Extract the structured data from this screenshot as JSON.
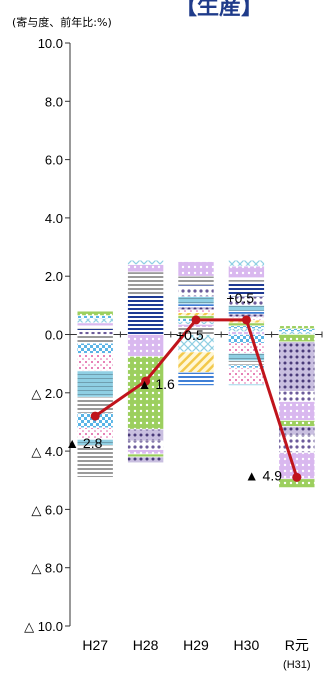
{
  "chart_data": {
    "type": "bar",
    "title": "【生産】",
    "ylabel": "(寄与度、前年比:%)",
    "ylim": [
      -10,
      10
    ],
    "yticks": [
      "10.0",
      "8.0",
      "6.0",
      "4.0",
      "2.0",
      "0.0",
      "△ 2.0",
      "△ 4.0",
      "△ 6.0",
      "△ 8.0",
      "△ 10.0"
    ],
    "ytick_values": [
      10,
      8,
      6,
      4,
      2,
      0,
      -2,
      -4,
      -6,
      -8,
      -10
    ],
    "categories": [
      "H27",
      "H28",
      "H29",
      "H30",
      "R元"
    ],
    "category_sublabels": [
      "",
      "",
      "",
      "",
      "(H31)"
    ],
    "grid": false,
    "series_colors": [
      "#8a7bb8",
      "#1f3a93",
      "#a8a8a8",
      "#c9a0e8",
      "#8fcfe3",
      "#5ab4e6",
      "#9ccf5e",
      "#f2c94c",
      "#e8a0c8",
      "#5a4a8a",
      "#3f7fd6",
      "#6f9fb0"
    ],
    "stacks": [
      {
        "positive": [
          0.1,
          0.1,
          0.1,
          0.1,
          0.15,
          0.1,
          0.15
        ],
        "negative": [
          -0.3,
          -0.35,
          -0.6,
          -0.9,
          -0.55,
          -0.5,
          -0.4,
          -0.2,
          -1.1
        ]
      },
      {
        "positive": [
          1.35,
          0.8,
          0.25,
          0.15
        ],
        "negative": [
          -0.75,
          -2.5,
          -0.4,
          -0.3,
          -0.15,
          -0.1,
          -0.2
        ]
      },
      {
        "positive": [
          0.25,
          0.1,
          0.1,
          0.1,
          0.1,
          0.1,
          0.1,
          0.1,
          0.1,
          0.25,
          0.3,
          0.1,
          0.3,
          0.5
        ],
        "negative": [
          -0.6,
          -0.7,
          -0.45
        ]
      },
      {
        "positive": [
          0.1,
          0.1,
          0.1,
          0.1,
          0.1,
          0.1,
          0.1,
          0.1,
          0.2,
          0.3,
          0.5,
          0.15,
          0.4,
          0.2
        ],
        "negative": [
          -0.3,
          -0.35,
          -0.25,
          -0.15,
          -0.1,
          -0.55,
          -0.05
        ]
      },
      {
        "positive": [
          0.1,
          0.1,
          0.1
        ],
        "negative": [
          -0.25,
          -1.7,
          -0.35,
          -0.65,
          -0.2,
          -0.3,
          -0.6,
          -0.9,
          -0.3
        ]
      }
    ],
    "series": [
      {
        "name": "",
        "type": "line",
        "values": [
          -2.8,
          -1.6,
          0.5,
          0.5,
          -4.9
        ]
      }
    ],
    "data_labels": [
      "▲ 2.8",
      "▲ 1.6",
      "+0.5",
      "+0.5",
      "▲ 4.9"
    ],
    "line_color": "#c0141c"
  }
}
